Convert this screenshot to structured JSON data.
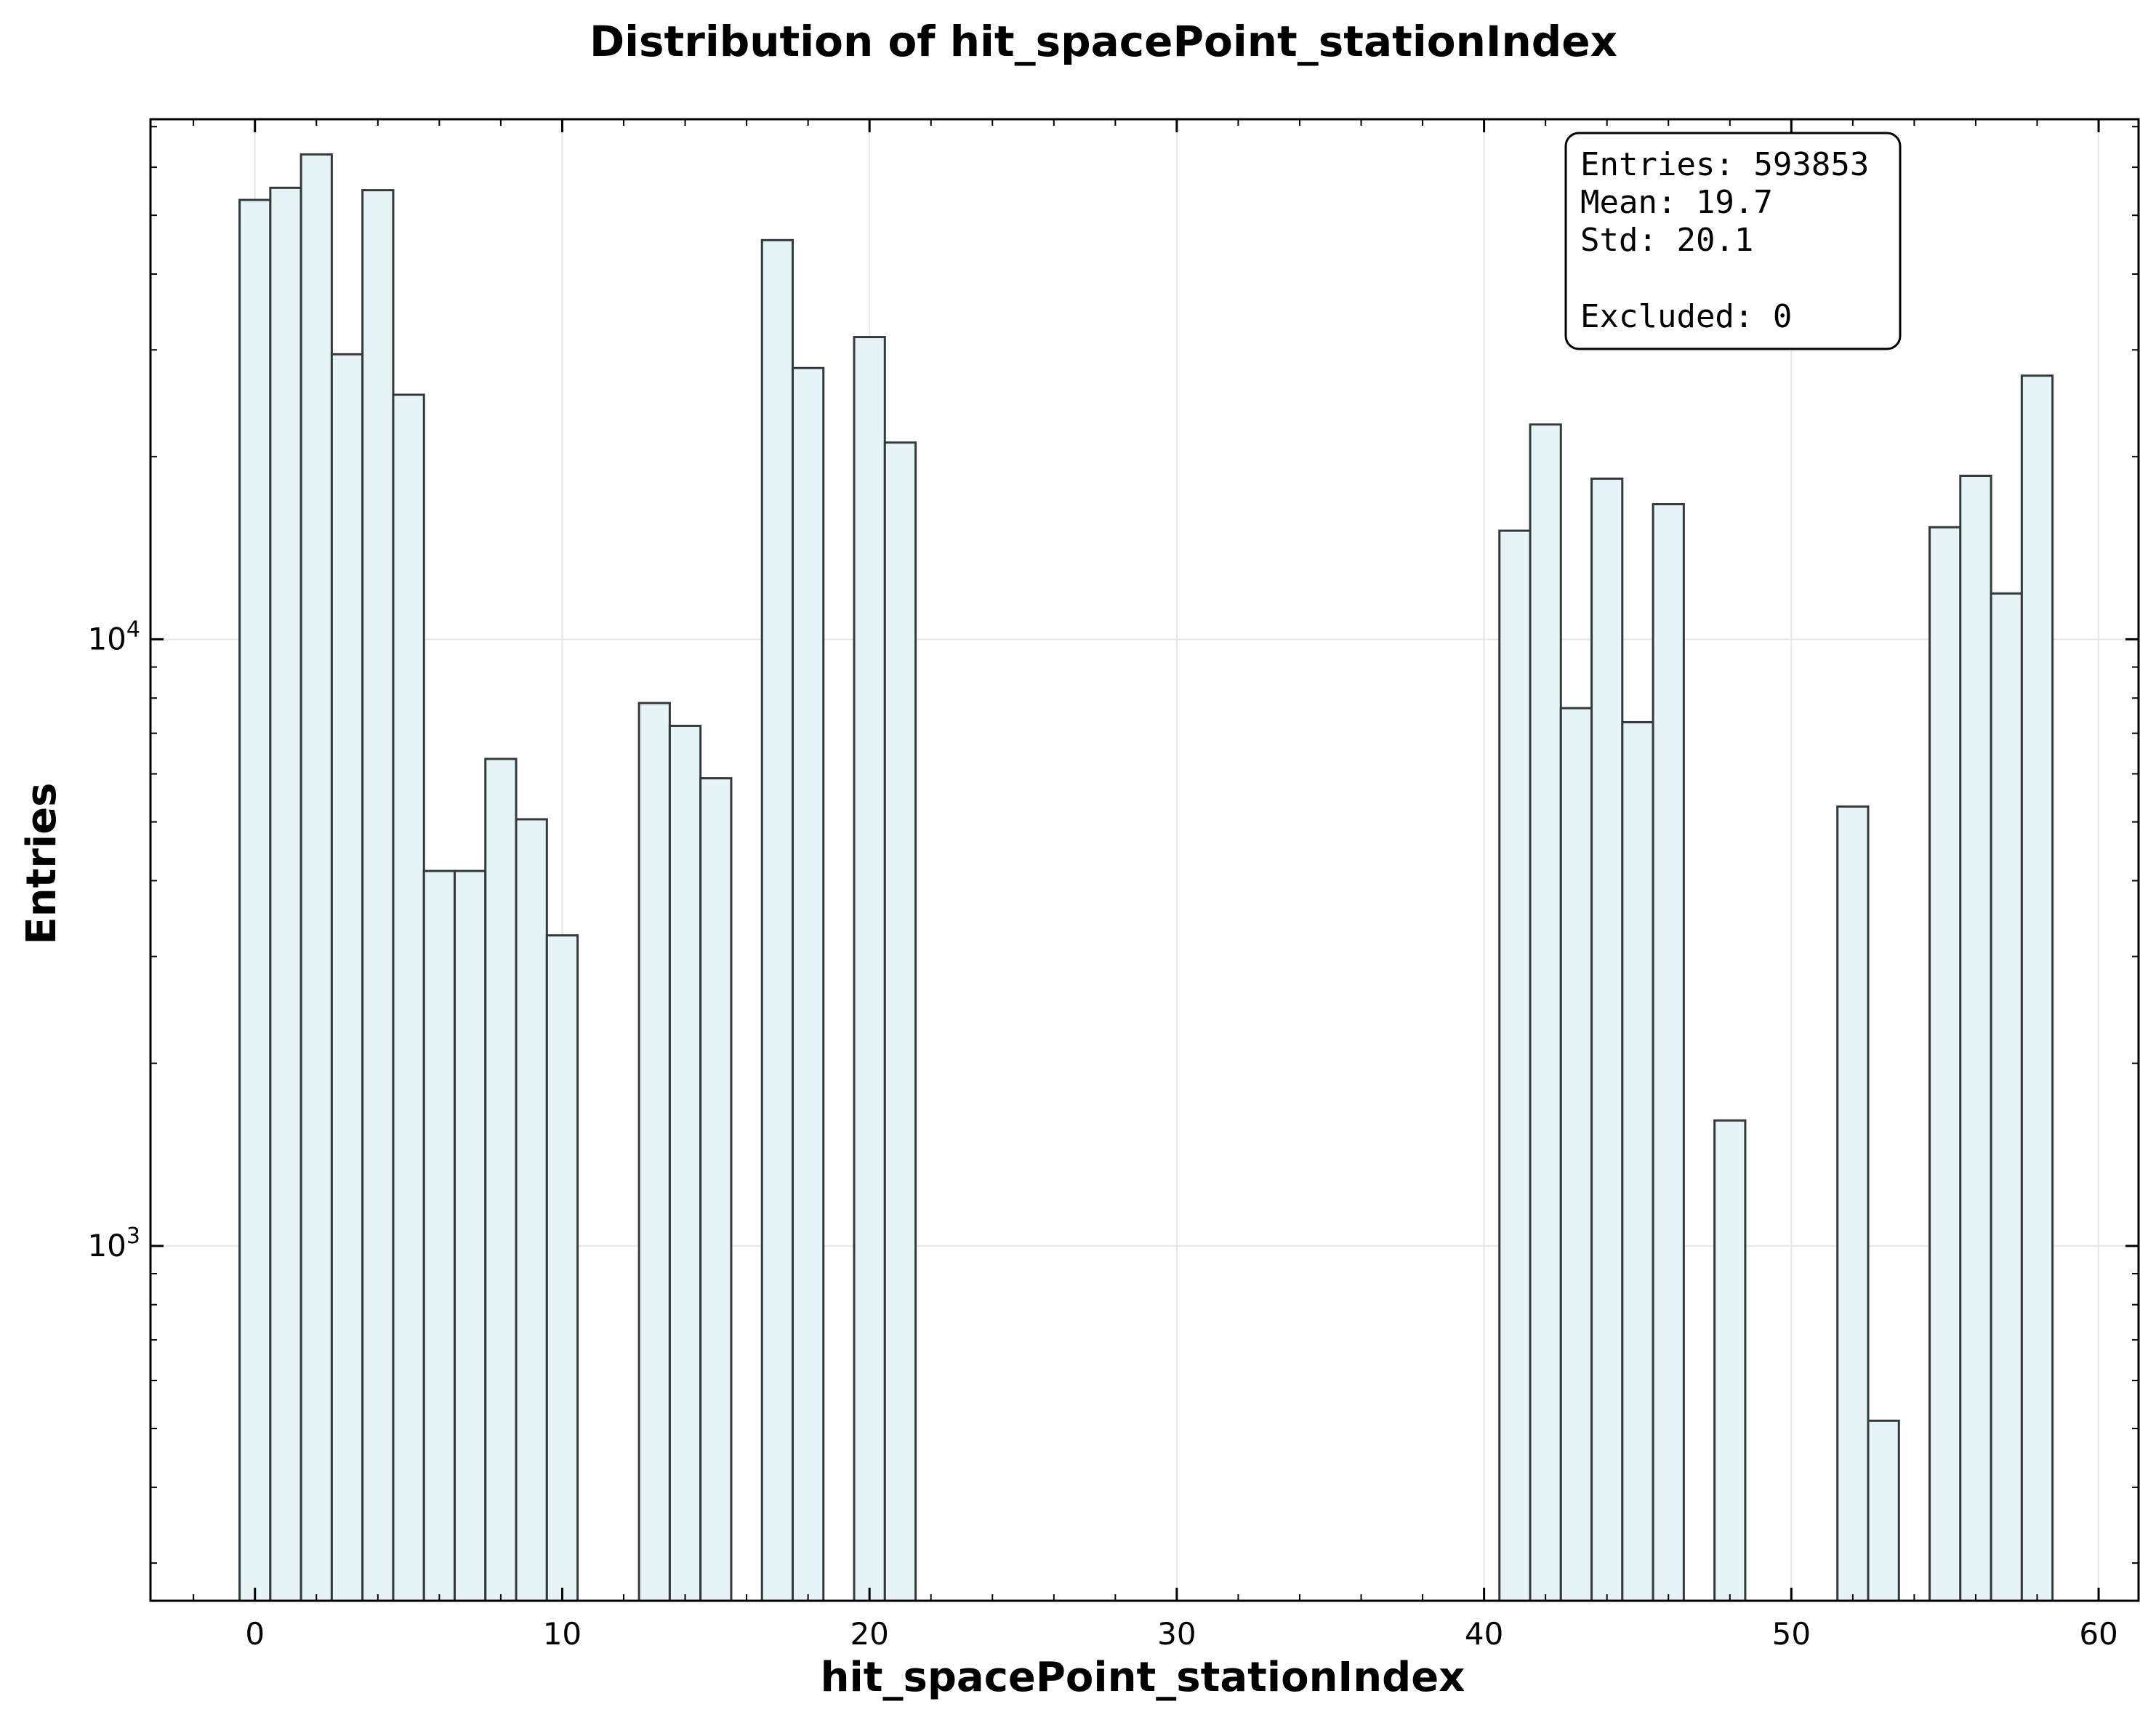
{
  "chart_data": {
    "type": "bar",
    "title": "Distribution of hit_spacePoint_stationIndex",
    "xlabel": "hit_spacePoint_stationIndex",
    "ylabel": "Entries",
    "xlim": [
      -3.4,
      61.3
    ],
    "ylim": [
      260,
      72000
    ],
    "y_scale": "log",
    "grid": true,
    "bin_width": 1,
    "x_ticks": [
      0,
      10,
      20,
      30,
      40,
      50,
      60
    ],
    "y_ticks": [
      {
        "value": 1000,
        "base": "10",
        "exp": "3"
      },
      {
        "value": 10000,
        "base": "10",
        "exp": "4"
      }
    ],
    "bins": [
      {
        "x": 0,
        "value": 53000
      },
      {
        "x": 1,
        "value": 55500
      },
      {
        "x": 2,
        "value": 63000
      },
      {
        "x": 3,
        "value": 29500
      },
      {
        "x": 4,
        "value": 55000
      },
      {
        "x": 5,
        "value": 25300
      },
      {
        "x": 6,
        "value": 4150
      },
      {
        "x": 7,
        "value": 4150
      },
      {
        "x": 8,
        "value": 6350
      },
      {
        "x": 9,
        "value": 5050
      },
      {
        "x": 10,
        "value": 3250
      },
      {
        "x": 13,
        "value": 7850
      },
      {
        "x": 14,
        "value": 7200
      },
      {
        "x": 15,
        "value": 5900
      },
      {
        "x": 17,
        "value": 45500
      },
      {
        "x": 18,
        "value": 28000
      },
      {
        "x": 20,
        "value": 31500
      },
      {
        "x": 21,
        "value": 21100
      },
      {
        "x": 41,
        "value": 15100
      },
      {
        "x": 42,
        "value": 22600
      },
      {
        "x": 43,
        "value": 7700
      },
      {
        "x": 44,
        "value": 18400
      },
      {
        "x": 45,
        "value": 7300
      },
      {
        "x": 46,
        "value": 16700
      },
      {
        "x": 48,
        "value": 1610
      },
      {
        "x": 52,
        "value": 5300
      },
      {
        "x": 53,
        "value": 515
      },
      {
        "x": 55,
        "value": 15300
      },
      {
        "x": 56,
        "value": 18600
      },
      {
        "x": 57,
        "value": 11900
      },
      {
        "x": 58,
        "value": 27200
      }
    ],
    "bar_fill": "#e6f4f6",
    "bar_edge": "#333a3a",
    "stats_box": {
      "entries": "Entries: 593853",
      "mean": "Mean: 19.7",
      "std": "Std: 20.1",
      "excluded": "Excluded: 0",
      "position": "top-right"
    }
  }
}
